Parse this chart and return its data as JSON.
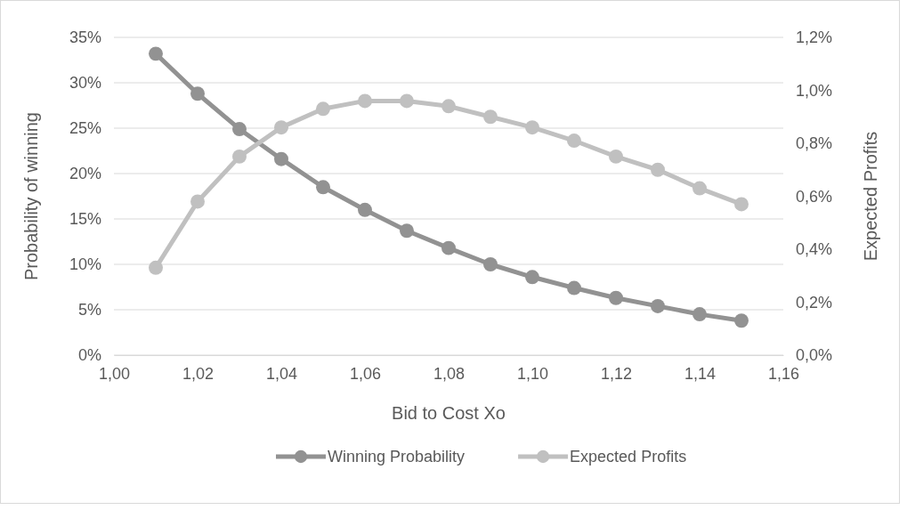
{
  "chart_data": {
    "type": "line",
    "xlabel": "Bid to Cost Xo",
    "ylabel": "Probability of winning",
    "y2label": "Expected Profits",
    "x": [
      1.01,
      1.02,
      1.03,
      1.04,
      1.05,
      1.06,
      1.07,
      1.08,
      1.09,
      1.1,
      1.11,
      1.12,
      1.13,
      1.14,
      1.15
    ],
    "series": [
      {
        "name": "Winning Probability",
        "color": "#929292",
        "values": [
          33.2,
          28.8,
          24.9,
          21.6,
          18.5,
          16.0,
          13.7,
          11.8,
          10.0,
          8.6,
          7.4,
          6.3,
          5.4,
          4.5,
          3.8
        ]
      },
      {
        "name": "Expected Profits",
        "color": "#c0c0c0",
        "axis": "y2",
        "values": [
          0.33,
          0.58,
          0.75,
          0.86,
          0.93,
          0.96,
          0.96,
          0.94,
          0.9,
          0.86,
          0.81,
          0.75,
          0.7,
          0.63,
          0.57
        ]
      }
    ],
    "xlim": [
      1.0,
      1.16
    ],
    "xticks": [
      {
        "value": 1.0,
        "label": "1,00"
      },
      {
        "value": 1.02,
        "label": "1,02"
      },
      {
        "value": 1.04,
        "label": "1,04"
      },
      {
        "value": 1.06,
        "label": "1,06"
      },
      {
        "value": 1.08,
        "label": "1,08"
      },
      {
        "value": 1.1,
        "label": "1,10"
      },
      {
        "value": 1.12,
        "label": "1,12"
      },
      {
        "value": 1.14,
        "label": "1,14"
      },
      {
        "value": 1.16,
        "label": "1,16"
      }
    ],
    "ylim": [
      0,
      35
    ],
    "yticks": [
      {
        "value": 0,
        "label": "0%"
      },
      {
        "value": 5,
        "label": "5%"
      },
      {
        "value": 10,
        "label": "10%"
      },
      {
        "value": 15,
        "label": "15%"
      },
      {
        "value": 20,
        "label": "20%"
      },
      {
        "value": 25,
        "label": "25%"
      },
      {
        "value": 30,
        "label": "30%"
      },
      {
        "value": 35,
        "label": "35%"
      }
    ],
    "y2lim": [
      0,
      1.2
    ],
    "y2ticks": [
      {
        "value": 0,
        "label": "0,0%"
      },
      {
        "value": 0.2,
        "label": "0,2%"
      },
      {
        "value": 0.4,
        "label": "0,4%"
      },
      {
        "value": 0.6,
        "label": "0,6%"
      },
      {
        "value": 0.8,
        "label": "0,8%"
      },
      {
        "value": 1.0,
        "label": "1,0%"
      },
      {
        "value": 1.2,
        "label": "1,2%"
      }
    ],
    "grid": "y",
    "legend": "bottom",
    "marker": "circle",
    "line_style": "solid"
  }
}
